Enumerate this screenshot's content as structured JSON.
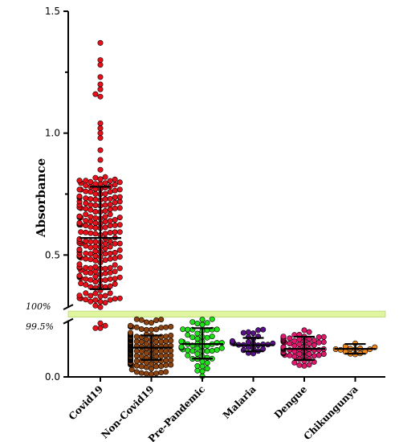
{
  "chart_data": {
    "type": "scatter",
    "title": "",
    "xlabel": "",
    "ylabel": "Absorbance",
    "ylim": [
      0,
      1.5
    ],
    "yticks": [
      "0.0",
      "0.5",
      "1.0",
      "1.5"
    ],
    "grid": false,
    "categories": [
      "Covid19",
      "Non-Covid19",
      "Pre-Pandemic",
      "Malaria",
      "Dengue",
      "Chikungunya"
    ],
    "cutoff_band": {
      "y_low": 0.245,
      "y_high": 0.27,
      "color": "#e0f5a0",
      "label_top": "100%",
      "label_bottom": "99.5%"
    },
    "series": [
      {
        "category": "Covid19",
        "color": "#e8101a",
        "mean": 0.57,
        "sd_high": 0.78,
        "sd_low": 0.36,
        "n": 240,
        "extreme_values": [
          1.37,
          1.3,
          1.28,
          1.23,
          1.2,
          1.18,
          1.16,
          1.15,
          1.04,
          1.02,
          1.0,
          0.98,
          0.93,
          0.89,
          0.85,
          0.82,
          0.81,
          0.21,
          0.2,
          0.2,
          0.22
        ]
      },
      {
        "category": "Non-Covid19",
        "color": "#8b4513",
        "mean": 0.12,
        "sd_high": 0.17,
        "sd_low": 0.07,
        "n": 260,
        "max": 0.25,
        "min": 0.01
      },
      {
        "category": "Pre-Pandemic",
        "color": "#22e01a",
        "mean": 0.135,
        "sd_high": 0.2,
        "sd_low": 0.075,
        "n": 60,
        "max": 0.25,
        "min": 0.0
      },
      {
        "category": "Malaria",
        "color": "#5a0e8a",
        "mean": 0.13,
        "sd_high": 0.16,
        "sd_low": 0.105,
        "n": 28,
        "max": 0.2,
        "min": 0.09
      },
      {
        "category": "Dengue",
        "color": "#e0156c",
        "mean": 0.115,
        "sd_high": 0.165,
        "sd_low": 0.07,
        "n": 70,
        "max": 0.2,
        "min": 0.04
      },
      {
        "category": "Chikungunya",
        "color": "#f08a1e",
        "mean": 0.115,
        "sd_high": 0.135,
        "sd_low": 0.095,
        "n": 14,
        "max": 0.15,
        "min": 0.085
      }
    ]
  }
}
